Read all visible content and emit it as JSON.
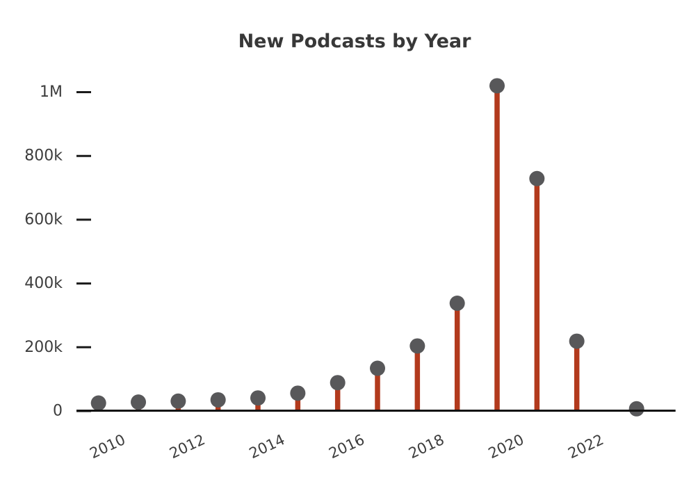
{
  "chart_data": {
    "type": "bar",
    "variant": "lollipop",
    "title": "New Podcasts by Year",
    "x": [
      2010,
      2011,
      2012,
      2013,
      2014,
      2015,
      2016,
      2017,
      2018,
      2019,
      2020,
      2021,
      2022,
      2023.5
    ],
    "values": [
      25000,
      28000,
      31000,
      35000,
      41000,
      56000,
      89000,
      134000,
      204000,
      338000,
      1020000,
      729000,
      219000,
      7000
    ],
    "x_tick_labels": [
      "2010",
      "2012",
      "2014",
      "2016",
      "2018",
      "2020",
      "2022"
    ],
    "yticks": [
      {
        "value": 0,
        "label": "0"
      },
      {
        "value": 200000,
        "label": "200k"
      },
      {
        "value": 400000,
        "label": "400k"
      },
      {
        "value": 600000,
        "label": "600k"
      },
      {
        "value": 800000,
        "label": "800k"
      },
      {
        "value": 1000000,
        "label": "1M"
      }
    ],
    "ylim": [
      0,
      1090000
    ],
    "xlabel": "",
    "ylabel": "",
    "grid": false,
    "legend": false,
    "colors": {
      "stem": "#b23a1d",
      "dot": "#58585a",
      "axis": "#111111",
      "tick_mark": "#1a1a1a",
      "tick_text": "#3d3d3d",
      "title": "#383838"
    }
  }
}
